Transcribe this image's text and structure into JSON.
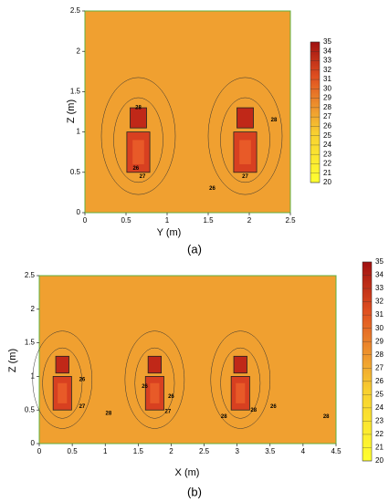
{
  "chart_data": [
    {
      "type": "contour",
      "panel_label": "(a)",
      "xlabel": "Y (m)",
      "ylabel": "Z (m)",
      "xlim": [
        0,
        2.5
      ],
      "ylim": [
        0,
        2.5
      ],
      "xticks": [
        0,
        0.5,
        1,
        1.5,
        2,
        2.5
      ],
      "yticks": [
        0,
        0.5,
        1,
        1.5,
        2,
        2.5
      ],
      "colorbar": {
        "lim": [
          20,
          35
        ],
        "ticks": [
          20,
          21,
          22,
          23,
          24,
          25,
          26,
          27,
          28,
          29,
          30,
          31,
          32,
          33,
          34,
          35
        ]
      },
      "contour_labels": [
        28,
        27,
        26,
        28,
        27,
        26
      ]
    },
    {
      "type": "contour",
      "panel_label": "(b)",
      "xlabel": "X (m)",
      "ylabel": "Z (m)",
      "xlim": [
        0,
        4.5
      ],
      "ylim": [
        0,
        2.5
      ],
      "xticks": [
        0,
        0.5,
        1,
        1.5,
        2,
        2.5,
        3,
        3.5,
        4,
        4.5
      ],
      "yticks": [
        0,
        0.5,
        1,
        1.5,
        2,
        2.5
      ],
      "colorbar": {
        "lim": [
          20,
          35
        ],
        "ticks": [
          20,
          21,
          22,
          23,
          24,
          25,
          26,
          27,
          28,
          29,
          30,
          31,
          32,
          33,
          34,
          35
        ]
      },
      "contour_labels": [
        26,
        27,
        26,
        28,
        26,
        27,
        28,
        28,
        26,
        28
      ]
    }
  ]
}
